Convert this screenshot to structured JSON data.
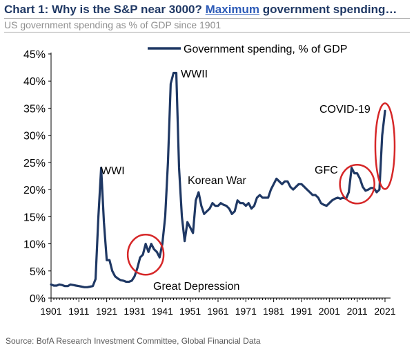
{
  "header": {
    "title_prefix": "Chart 1: Why is the S&P near 3000? ",
    "title_highlight": "Maximum",
    "title_suffix": " government spending…",
    "subtitle": "US government spending as % of GDP since 1901"
  },
  "footer": {
    "source": "Source: BofA Research Investment Committee, Global Financial Data"
  },
  "colors": {
    "line": "#1f3864",
    "circle": "#d62728",
    "title": "#1f3864",
    "highlight": "#2e5cb8"
  },
  "chart_data": {
    "type": "line",
    "title": "",
    "xlabel": "",
    "ylabel": "",
    "xlim": [
      1901,
      2022
    ],
    "ylim": [
      0,
      45
    ],
    "yticks": [
      "0%",
      "5%",
      "10%",
      "15%",
      "20%",
      "25%",
      "30%",
      "35%",
      "40%",
      "45%"
    ],
    "xticks": [
      "1901",
      "1911",
      "1921",
      "1931",
      "1941",
      "1951",
      "1961",
      "1971",
      "1981",
      "1991",
      "2001",
      "2011",
      "2021"
    ],
    "grid": false,
    "legend": {
      "position": "top",
      "entries": [
        "Government spending, % of GDP"
      ]
    },
    "series": [
      {
        "name": "Government spending, % of GDP",
        "x": [
          1901,
          1902,
          1903,
          1904,
          1905,
          1906,
          1907,
          1908,
          1909,
          1910,
          1911,
          1912,
          1913,
          1914,
          1915,
          1916,
          1917,
          1918,
          1919,
          1920,
          1921,
          1922,
          1923,
          1924,
          1925,
          1926,
          1927,
          1928,
          1929,
          1930,
          1931,
          1932,
          1933,
          1934,
          1935,
          1936,
          1937,
          1938,
          1939,
          1940,
          1941,
          1942,
          1943,
          1944,
          1945,
          1946,
          1947,
          1948,
          1949,
          1950,
          1951,
          1952,
          1953,
          1954,
          1955,
          1956,
          1957,
          1958,
          1959,
          1960,
          1961,
          1962,
          1963,
          1964,
          1965,
          1966,
          1967,
          1968,
          1969,
          1970,
          1971,
          1972,
          1973,
          1974,
          1975,
          1976,
          1977,
          1978,
          1979,
          1980,
          1981,
          1982,
          1983,
          1984,
          1985,
          1986,
          1987,
          1988,
          1989,
          1990,
          1991,
          1992,
          1993,
          1994,
          1995,
          1996,
          1997,
          1998,
          1999,
          2000,
          2001,
          2002,
          2003,
          2004,
          2005,
          2006,
          2007,
          2008,
          2009,
          2010,
          2011,
          2012,
          2013,
          2014,
          2015,
          2016,
          2017,
          2018,
          2019,
          2020,
          2021
        ],
        "values": [
          2.5,
          2.3,
          2.3,
          2.5,
          2.4,
          2.2,
          2.2,
          2.5,
          2.4,
          2.3,
          2.2,
          2.1,
          2.0,
          2.0,
          2.1,
          2.2,
          3.5,
          15.0,
          24.0,
          14.0,
          7.0,
          7.0,
          5.0,
          4.0,
          3.6,
          3.3,
          3.2,
          3.0,
          3.0,
          3.2,
          4.0,
          5.5,
          7.5,
          8.0,
          10.0,
          8.5,
          10.0,
          9.0,
          8.5,
          7.5,
          10.0,
          15.0,
          25.0,
          39.5,
          41.5,
          41.5,
          24.0,
          15.0,
          10.5,
          14.0,
          13.0,
          12.0,
          18.0,
          19.5,
          17.0,
          15.5,
          16.0,
          16.5,
          17.5,
          17.0,
          17.0,
          17.5,
          17.2,
          17.0,
          16.5,
          15.5,
          16.0,
          18.0,
          17.5,
          17.5,
          17.0,
          17.5,
          16.5,
          17.0,
          18.5,
          19.0,
          18.5,
          18.5,
          18.5,
          20.0,
          21.0,
          22.0,
          21.5,
          21.0,
          21.5,
          21.5,
          20.5,
          20.0,
          20.5,
          21.0,
          21.0,
          20.5,
          20.0,
          19.5,
          19.0,
          19.0,
          18.5,
          17.5,
          17.2,
          17.0,
          17.5,
          18.0,
          18.3,
          18.5,
          18.3,
          18.5,
          18.3,
          19.5,
          24.0,
          23.0,
          23.0,
          22.0,
          20.5,
          19.8,
          20.0,
          20.3,
          20.3,
          19.5,
          20.0,
          30.0,
          34.5
        ]
      }
    ],
    "annotations": [
      "WWI",
      "WWII",
      "Korean War",
      "Great Depression",
      "GFC",
      "COVID-19"
    ]
  }
}
